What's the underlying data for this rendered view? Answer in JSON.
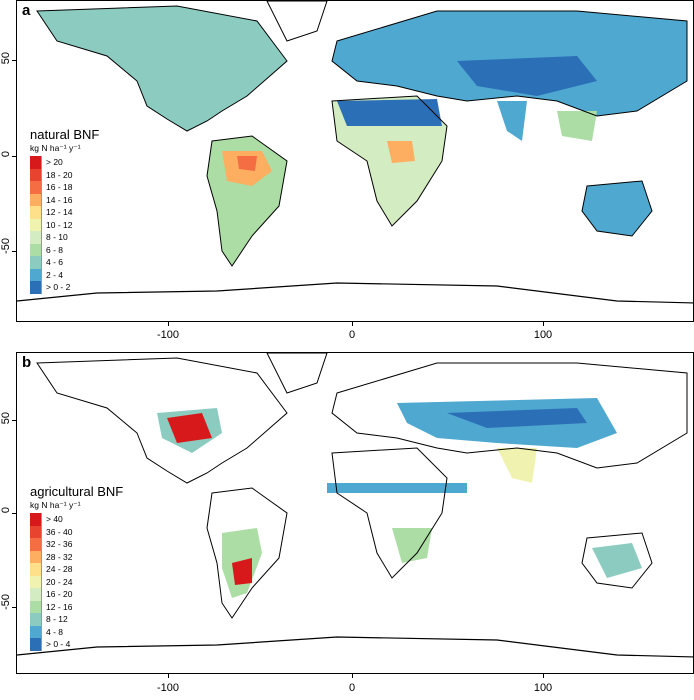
{
  "panels": [
    {
      "letter": "a",
      "legend_title": "natural BNF",
      "legend_unit": "kg N ha⁻¹ y⁻¹",
      "legend": [
        {
          "label": "> 20",
          "color": "#d7191c"
        },
        {
          "label": "18 - 20",
          "color": "#e8432e"
        },
        {
          "label": "16 - 18",
          "color": "#f46d43"
        },
        {
          "label": "14 - 16",
          "color": "#fdae61"
        },
        {
          "label": "12 - 14",
          "color": "#fee08b"
        },
        {
          "label": "10 - 12",
          "color": "#f0f3b0"
        },
        {
          "label": "8 - 10",
          "color": "#d4ecc2"
        },
        {
          "label": "6 - 8",
          "color": "#abdda4"
        },
        {
          "label": "4 - 6",
          "color": "#8ccbc0"
        },
        {
          "label": "2 - 4",
          "color": "#4fa8d0"
        },
        {
          "label": "> 0 - 2",
          "color": "#2b6fb7"
        }
      ]
    },
    {
      "letter": "b",
      "legend_title": "agricultural BNF",
      "legend_unit": "kg N ha⁻¹ y⁻¹",
      "legend": [
        {
          "label": "> 40",
          "color": "#d7191c"
        },
        {
          "label": "36 - 40",
          "color": "#e8432e"
        },
        {
          "label": "32 - 36",
          "color": "#f46d43"
        },
        {
          "label": "28 - 32",
          "color": "#fdae61"
        },
        {
          "label": "24 - 28",
          "color": "#fee08b"
        },
        {
          "label": "20 - 24",
          "color": "#f0f3b0"
        },
        {
          "label": "16 - 20",
          "color": "#d4ecc2"
        },
        {
          "label": "12 - 16",
          "color": "#abdda4"
        },
        {
          "label": "8 - 12",
          "color": "#8ccbc0"
        },
        {
          "label": "4 - 8",
          "color": "#4fa8d0"
        },
        {
          "label": "> 0 - 4",
          "color": "#2b6fb7"
        }
      ]
    }
  ],
  "x_ticks": [
    "-100",
    "0",
    "100"
  ],
  "y_ticks": [
    "50",
    "0",
    "-50"
  ],
  "colors": {
    "coastline": "#000000",
    "background": "#ffffff"
  }
}
